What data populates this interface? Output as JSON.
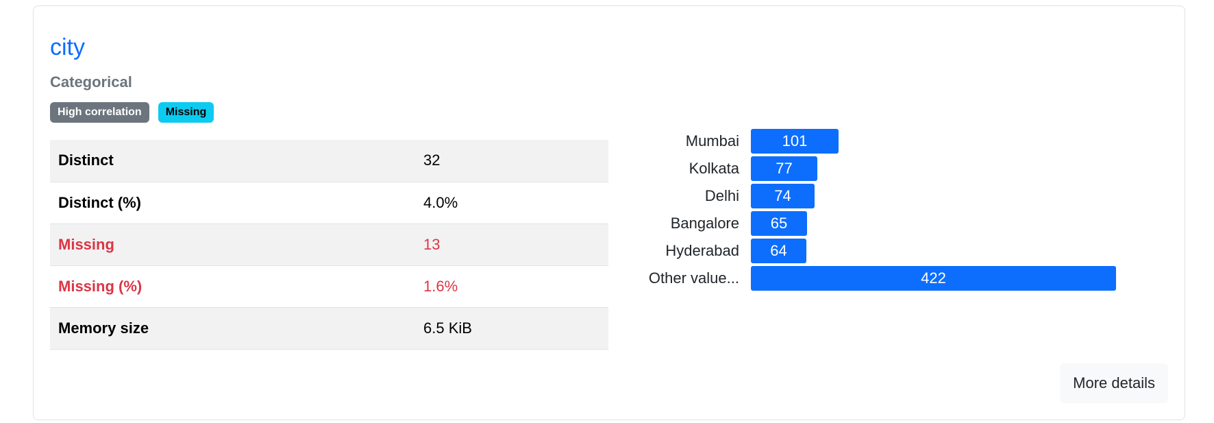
{
  "variable": {
    "name": "city",
    "type": "Categorical",
    "badges": [
      {
        "label": "High correlation",
        "style": "secondary"
      },
      {
        "label": "Missing",
        "style": "info"
      }
    ]
  },
  "stats": [
    {
      "label": "Distinct",
      "value": "32",
      "alert": false
    },
    {
      "label": "Distinct (%)",
      "value": "4.0%",
      "alert": false
    },
    {
      "label": "Missing",
      "value": "13",
      "alert": true
    },
    {
      "label": "Missing (%)",
      "value": "1.6%",
      "alert": true
    },
    {
      "label": "Memory size",
      "value": "6.5 KiB",
      "alert": false
    }
  ],
  "chart_data": {
    "type": "bar",
    "orientation": "horizontal",
    "categories": [
      "Mumbai",
      "Kolkata",
      "Delhi",
      "Bangalore",
      "Hyderabad",
      "Other value..."
    ],
    "values": [
      101,
      77,
      74,
      65,
      64,
      422
    ],
    "title": "",
    "xlabel": "",
    "ylabel": "",
    "bar_color": "#0d6efd"
  },
  "actions": {
    "more_details": "More details"
  },
  "colors": {
    "link": "#0d6efd",
    "alert": "#dc3545",
    "badge_secondary": "#6c757d",
    "badge_info": "#0dcaf0"
  }
}
